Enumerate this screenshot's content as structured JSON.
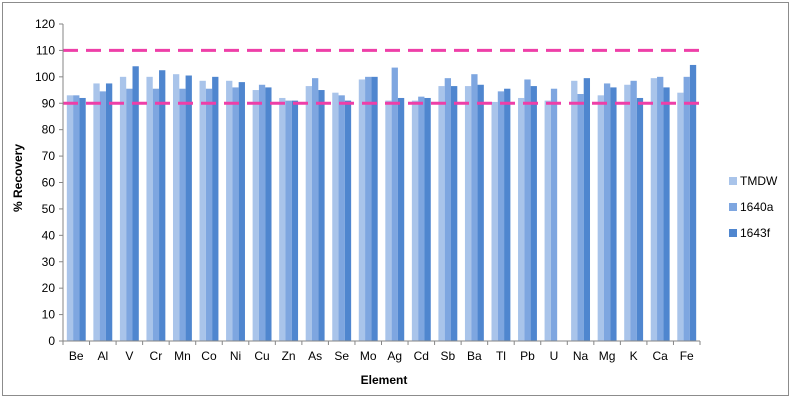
{
  "chart_data": {
    "type": "bar",
    "title": "",
    "xlabel": "Element",
    "ylabel": "% Recovery",
    "ylim": [
      0,
      120
    ],
    "ytick_step": 10,
    "grid": false,
    "legend_position": "right",
    "categories": [
      "Be",
      "Al",
      "V",
      "Cr",
      "Mn",
      "Co",
      "Ni",
      "Cu",
      "Zn",
      "As",
      "Se",
      "Mo",
      "Ag",
      "Cd",
      "Sb",
      "Ba",
      "Tl",
      "Pb",
      "U",
      "Na",
      "Mg",
      "K",
      "Ca",
      "Fe"
    ],
    "series": [
      {
        "name": "TMDW",
        "color": "#a9c4ea",
        "values": [
          93,
          97.5,
          100,
          100,
          101,
          98.5,
          98.5,
          95,
          92,
          96.5,
          94,
          99,
          91,
          91,
          96.5,
          96.5,
          90.5,
          92,
          91,
          98.5,
          93,
          97,
          99.5,
          94
        ]
      },
      {
        "name": "1640a",
        "color": "#7ea6e0",
        "values": [
          93,
          94.5,
          95.5,
          95.5,
          95.5,
          95.5,
          96,
          97,
          91,
          99.5,
          93,
          100,
          103.5,
          92.5,
          99.5,
          101,
          94.5,
          99,
          95.5,
          93.5,
          97.5,
          98.5,
          100,
          100
        ]
      },
      {
        "name": "1643f",
        "color": "#4f86cf",
        "values": [
          92,
          97.5,
          104,
          102.5,
          100.5,
          100,
          98,
          96,
          91,
          95,
          91,
          100,
          92,
          92,
          96.5,
          97,
          95.5,
          96.5,
          null,
          99.5,
          96,
          92,
          96,
          104.5
        ]
      }
    ],
    "reference_lines": [
      {
        "value": 110,
        "color": "#ee3fa8",
        "style": "dashed"
      },
      {
        "value": 90,
        "color": "#ee3fa8",
        "style": "dashed"
      }
    ]
  }
}
